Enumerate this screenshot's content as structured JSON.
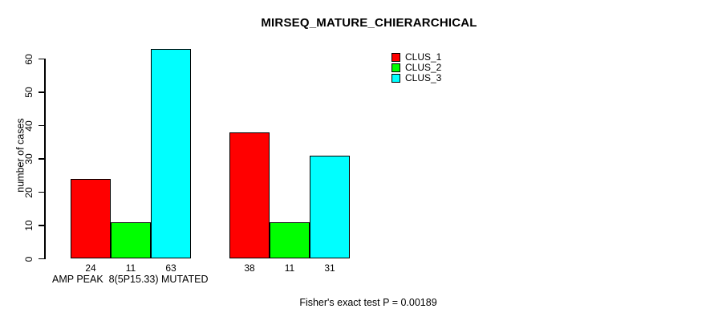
{
  "page": {
    "background_color": "#ffffff",
    "text_color": "#000000",
    "axis_color": "#000000"
  },
  "chart_data": {
    "type": "bar",
    "title": "MIRSEQ_MATURE_CHIERARCHICAL",
    "xlabel": "AMP PEAK  8(5P15.33) MUTATED",
    "ylabel": "number of cases",
    "annotation": "Fisher's exact test P = 0.00189",
    "categories": [
      "",
      ""
    ],
    "series": [
      {
        "name": "CLUS_1",
        "color": "#FF0000",
        "values": [
          24,
          38
        ]
      },
      {
        "name": "CLUS_2",
        "color": "#00FF00",
        "values": [
          11,
          11
        ]
      },
      {
        "name": "CLUS_3",
        "color": "#00FFFF",
        "values": [
          63,
          31
        ]
      }
    ],
    "yticks": [
      0,
      10,
      20,
      30,
      40,
      50,
      60
    ],
    "ylim": [
      0,
      63
    ],
    "grid": false,
    "legend_position": "top-right",
    "show_values_below_bars": true,
    "bar_value_labels": [
      [
        24,
        11,
        63
      ],
      [
        38,
        11,
        31
      ]
    ]
  }
}
